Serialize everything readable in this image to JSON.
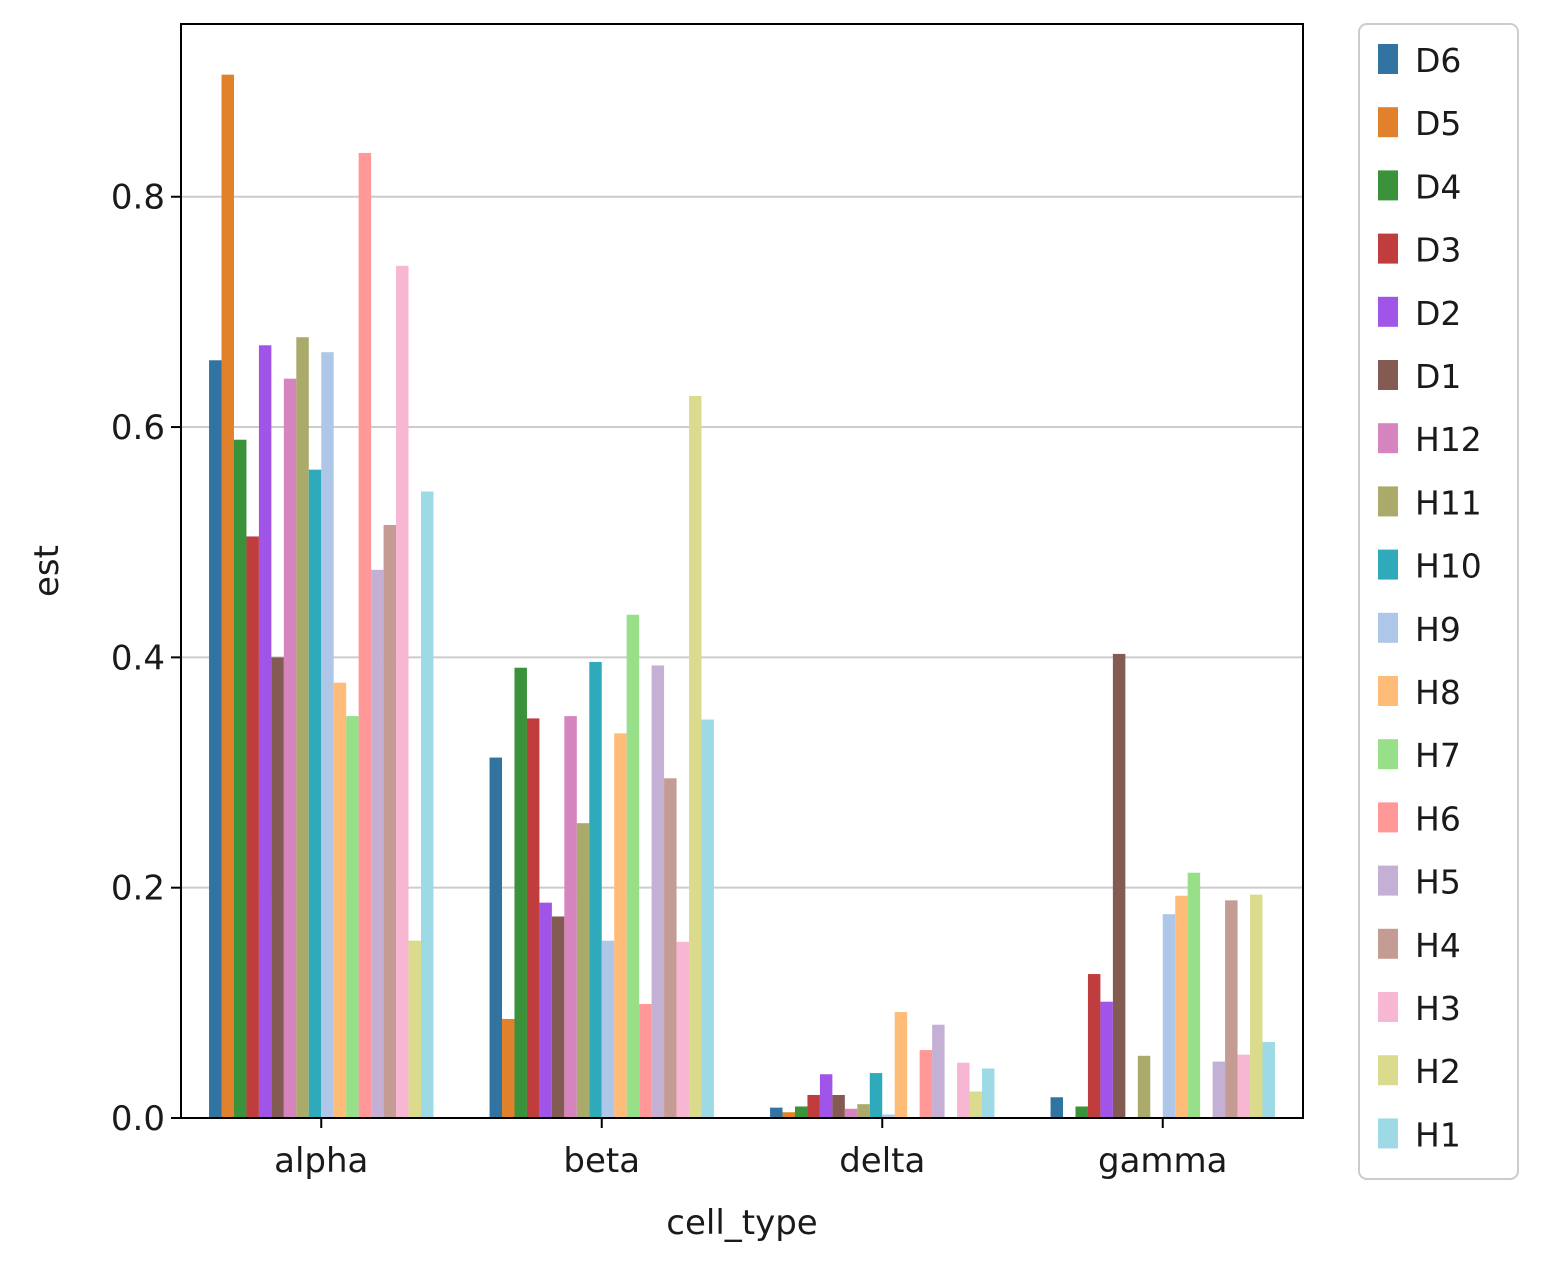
{
  "chart_data": {
    "type": "bar",
    "xlabel": "cell_type",
    "ylabel": "est",
    "ylim": [
      0,
      0.95
    ],
    "yticks": [
      "0.0",
      "0.2",
      "0.4",
      "0.6",
      "0.8"
    ],
    "grid": "horizontal",
    "legend_position": "outside-right",
    "categories": [
      "alpha",
      "beta",
      "delta",
      "gamma"
    ],
    "series": [
      {
        "name": "D6",
        "color": "#3274a1",
        "values": [
          0.658,
          0.313,
          0.009,
          0.018
        ]
      },
      {
        "name": "D5",
        "color": "#e1812c",
        "values": [
          0.906,
          0.086,
          0.005,
          0.0
        ]
      },
      {
        "name": "D4",
        "color": "#3a923a",
        "values": [
          0.589,
          0.391,
          0.01,
          0.01
        ]
      },
      {
        "name": "D3",
        "color": "#c03d3e",
        "values": [
          0.505,
          0.347,
          0.02,
          0.125
        ]
      },
      {
        "name": "D2",
        "color": "#a155e8",
        "values": [
          0.671,
          0.187,
          0.038,
          0.101
        ]
      },
      {
        "name": "D1",
        "color": "#845b53",
        "values": [
          0.4,
          0.175,
          0.02,
          0.403
        ]
      },
      {
        "name": "H12",
        "color": "#d684bd",
        "values": [
          0.642,
          0.349,
          0.008,
          0.0
        ]
      },
      {
        "name": "H11",
        "color": "#aaaa6b",
        "values": [
          0.678,
          0.256,
          0.012,
          0.054
        ]
      },
      {
        "name": "H10",
        "color": "#2eaaba",
        "values": [
          0.563,
          0.396,
          0.039,
          0.0
        ]
      },
      {
        "name": "H9",
        "color": "#aec7e8",
        "values": [
          0.665,
          0.154,
          0.003,
          0.177
        ]
      },
      {
        "name": "H8",
        "color": "#ffbb78",
        "values": [
          0.378,
          0.334,
          0.092,
          0.193
        ]
      },
      {
        "name": "H7",
        "color": "#98df8a",
        "values": [
          0.349,
          0.437,
          0.0,
          0.213
        ]
      },
      {
        "name": "H6",
        "color": "#ff9896",
        "values": [
          0.838,
          0.099,
          0.059,
          0.0
        ]
      },
      {
        "name": "H5",
        "color": "#c5b0d5",
        "values": [
          0.476,
          0.393,
          0.081,
          0.049
        ]
      },
      {
        "name": "H4",
        "color": "#c49c94",
        "values": [
          0.515,
          0.295,
          0.0,
          0.189
        ]
      },
      {
        "name": "H3",
        "color": "#f7b6d2",
        "values": [
          0.74,
          0.153,
          0.048,
          0.055
        ]
      },
      {
        "name": "H2",
        "color": "#dbdb8d",
        "values": [
          0.154,
          0.627,
          0.023,
          0.194
        ]
      },
      {
        "name": "H1",
        "color": "#9edae5",
        "values": [
          0.544,
          0.346,
          0.043,
          0.066
        ]
      }
    ]
  }
}
